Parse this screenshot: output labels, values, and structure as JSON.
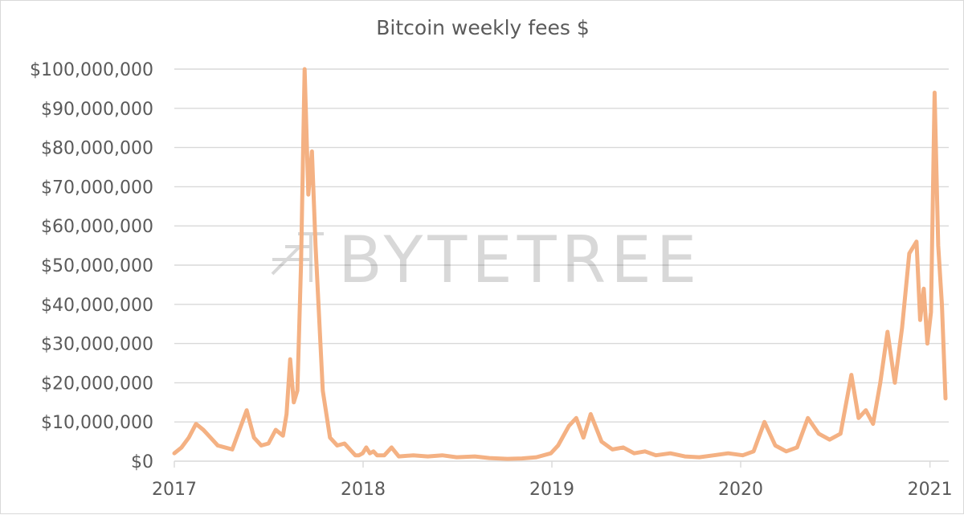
{
  "chart_data": {
    "type": "line",
    "title": "Bitcoin weekly fees $",
    "xlabel": "",
    "ylabel": "",
    "x_ticks": [
      "2017",
      "2018",
      "2019",
      "2020",
      "2021"
    ],
    "y_ticks": [
      "$0",
      "$10,000,000",
      "$20,000,000",
      "$30,000,000",
      "$40,000,000",
      "$50,000,000",
      "$60,000,000",
      "$70,000,000",
      "$80,000,000",
      "$90,000,000",
      "$100,000,000"
    ],
    "ylim": [
      0,
      100000000
    ],
    "xlim": [
      "2017-01-01",
      "2021-01-31"
    ],
    "grid": "horizontal",
    "legend": "none",
    "line_color": "#f4b183",
    "series": [
      {
        "x": [
          "2017-01-01",
          "2017-01-15",
          "2017-01-29",
          "2017-02-12",
          "2017-02-26",
          "2017-03-12",
          "2017-03-26",
          "2017-04-09",
          "2017-04-23",
          "2017-05-07",
          "2017-05-21",
          "2017-06-04",
          "2017-06-18",
          "2017-07-02",
          "2017-07-16",
          "2017-07-30",
          "2017-08-06",
          "2017-08-13",
          "2017-08-20",
          "2017-08-27",
          "2017-09-03",
          "2017-09-10",
          "2017-09-17",
          "2017-09-24",
          "2017-10-01",
          "2017-10-15",
          "2017-10-29",
          "2017-11-12",
          "2017-11-26",
          "2017-12-10",
          "2017-12-17",
          "2017-12-24",
          "2017-12-31",
          "2018-01-07",
          "2018-01-14",
          "2018-01-21",
          "2018-01-28",
          "2018-02-11",
          "2018-02-25",
          "2018-03-11",
          "2018-04-08",
          "2018-05-06",
          "2018-06-03",
          "2018-07-01",
          "2018-08-05",
          "2018-09-02",
          "2018-10-07",
          "2018-11-04",
          "2018-12-02",
          "2018-12-30",
          "2019-01-13",
          "2019-02-03",
          "2019-02-17",
          "2019-03-03",
          "2019-03-17",
          "2019-04-07",
          "2019-04-28",
          "2019-05-19",
          "2019-06-09",
          "2019-06-30",
          "2019-07-21",
          "2019-08-18",
          "2019-09-15",
          "2019-10-13",
          "2019-11-10",
          "2019-12-08",
          "2020-01-05",
          "2020-01-26",
          "2020-02-16",
          "2020-03-08",
          "2020-03-29",
          "2020-04-19",
          "2020-05-10",
          "2020-05-31",
          "2020-06-21",
          "2020-07-12",
          "2020-08-02",
          "2020-08-16",
          "2020-08-30",
          "2020-09-13",
          "2020-09-27",
          "2020-10-11",
          "2020-10-25",
          "2020-11-08",
          "2020-11-22",
          "2020-12-06",
          "2020-12-13",
          "2020-12-20",
          "2020-12-27",
          "2021-01-03",
          "2021-01-10",
          "2021-01-17",
          "2021-01-24",
          "2021-01-31"
        ],
        "y": [
          2000000,
          3500000,
          6000000,
          9500000,
          8000000,
          6000000,
          4000000,
          3500000,
          3000000,
          8000000,
          13000000,
          6000000,
          4000000,
          4500000,
          8000000,
          6500000,
          12000000,
          26000000,
          15000000,
          18000000,
          50000000,
          100000000,
          68000000,
          79000000,
          55000000,
          18000000,
          6000000,
          4000000,
          4500000,
          2500000,
          1500000,
          1500000,
          2000000,
          3500000,
          2000000,
          2500000,
          1500000,
          1500000,
          3500000,
          1200000,
          1500000,
          1200000,
          1500000,
          1000000,
          1200000,
          800000,
          600000,
          700000,
          1000000,
          2000000,
          4000000,
          9000000,
          11000000,
          6000000,
          12000000,
          5000000,
          3000000,
          3500000,
          2000000,
          2500000,
          1500000,
          2000000,
          1200000,
          1000000,
          1500000,
          2000000,
          1500000,
          2500000,
          10000000,
          4000000,
          2500000,
          3500000,
          11000000,
          7000000,
          5500000,
          7000000,
          22000000,
          11000000,
          13000000,
          9500000,
          20000000,
          33000000,
          20000000,
          34000000,
          53000000,
          56000000,
          36000000,
          44000000,
          30000000,
          38000000,
          94000000,
          55000000,
          40000000,
          16000000
        ]
      }
    ]
  },
  "watermark": "BYTETREE"
}
